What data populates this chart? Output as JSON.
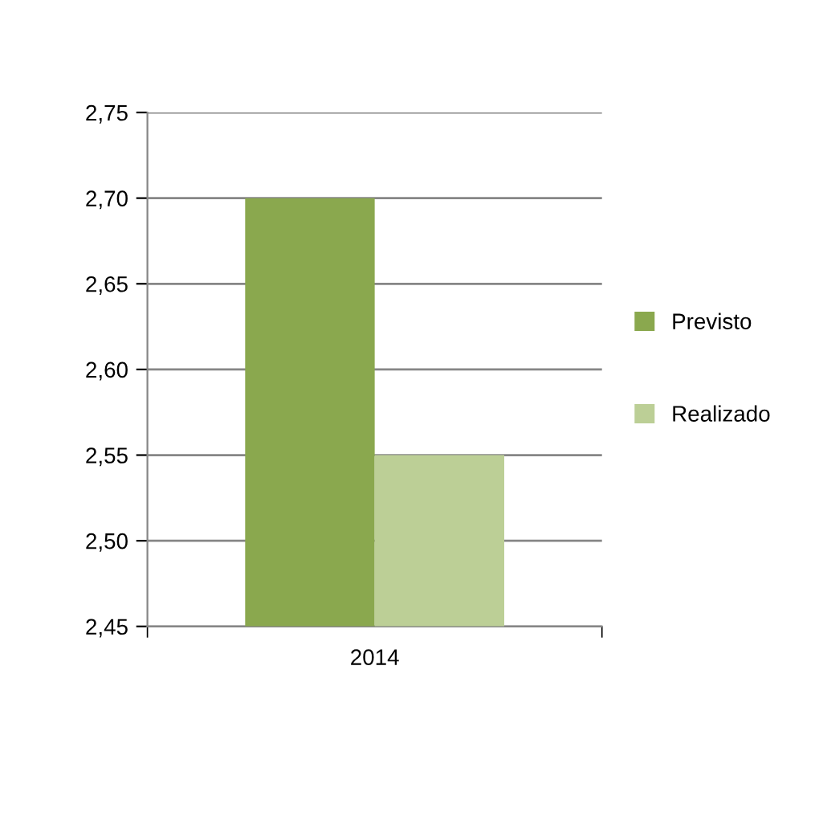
{
  "chart_data": {
    "type": "bar",
    "categories": [
      "2014"
    ],
    "series": [
      {
        "name": "Previsto",
        "color": "#8aa84e",
        "values": [
          2.7
        ]
      },
      {
        "name": "Realizado",
        "color": "#bccf96",
        "values": [
          2.55
        ]
      }
    ],
    "ylim": [
      2.45,
      2.75
    ],
    "yticks": [
      {
        "value": 2.45,
        "label": "2,45"
      },
      {
        "value": 2.5,
        "label": "2,50"
      },
      {
        "value": 2.55,
        "label": "2,55"
      },
      {
        "value": 2.6,
        "label": "2,60"
      },
      {
        "value": 2.65,
        "label": "2,65"
      },
      {
        "value": 2.7,
        "label": "2,70"
      },
      {
        "value": 2.75,
        "label": "2,75"
      }
    ],
    "grid": "y",
    "legend": "right"
  }
}
